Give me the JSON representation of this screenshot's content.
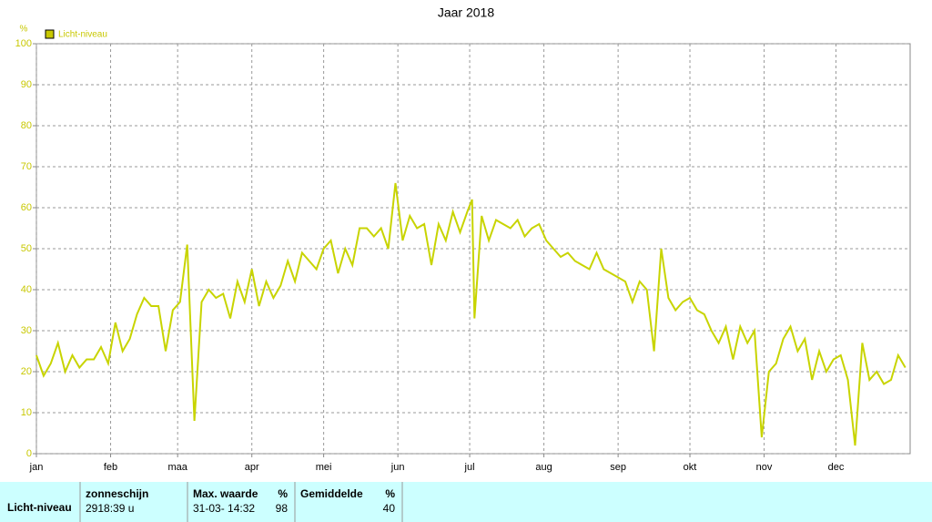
{
  "chart_data": {
    "type": "line",
    "title": "Jaar 2018",
    "y_unit": "%",
    "xlim": [
      0,
      365
    ],
    "xticks": [
      {
        "value": 0,
        "label": "jan"
      },
      {
        "value": 31,
        "label": "feb"
      },
      {
        "value": 59,
        "label": "maa"
      },
      {
        "value": 90,
        "label": "apr"
      },
      {
        "value": 120,
        "label": "mei"
      },
      {
        "value": 151,
        "label": "jun"
      },
      {
        "value": 181,
        "label": "jul"
      },
      {
        "value": 212,
        "label": "aug"
      },
      {
        "value": 243,
        "label": "sep"
      },
      {
        "value": 273,
        "label": "okt"
      },
      {
        "value": 304,
        "label": "nov"
      },
      {
        "value": 334,
        "label": "dec"
      }
    ],
    "ylim": [
      0,
      100
    ],
    "yticks": [
      0,
      10,
      20,
      30,
      40,
      50,
      60,
      70,
      80,
      90,
      100
    ],
    "grid": true,
    "legend": "top-left",
    "x": [
      0,
      3,
      6,
      9,
      12,
      15,
      18,
      21,
      24,
      27,
      30,
      33,
      36,
      39,
      42,
      45,
      48,
      51,
      54,
      57,
      60,
      63,
      66,
      69,
      72,
      75,
      78,
      81,
      84,
      87,
      90,
      93,
      96,
      99,
      102,
      105,
      108,
      111,
      114,
      117,
      120,
      123,
      126,
      129,
      132,
      135,
      138,
      141,
      144,
      147,
      150,
      153,
      156,
      159,
      162,
      165,
      168,
      171,
      174,
      177,
      180,
      182,
      183,
      186,
      189,
      192,
      195,
      198,
      201,
      204,
      207,
      210,
      213,
      216,
      219,
      222,
      225,
      228,
      231,
      234,
      237,
      240,
      243,
      246,
      249,
      252,
      255,
      258,
      261,
      264,
      267,
      270,
      273,
      276,
      279,
      282,
      285,
      288,
      291,
      294,
      297,
      300,
      303,
      306,
      309,
      312,
      315,
      318,
      321,
      324,
      327,
      330,
      333,
      336,
      339,
      342,
      345,
      348,
      351,
      354,
      357,
      360,
      363
    ],
    "series": [
      {
        "name": "Licht-niveau",
        "color": "#c8d400",
        "values": [
          24,
          19,
          22,
          27,
          20,
          24,
          21,
          23,
          23,
          26,
          22,
          32,
          25,
          28,
          34,
          38,
          36,
          36,
          25,
          35,
          37,
          51,
          8,
          37,
          40,
          38,
          39,
          33,
          42,
          37,
          45,
          36,
          42,
          38,
          41,
          47,
          42,
          49,
          47,
          45,
          50,
          52,
          44,
          50,
          46,
          55,
          55,
          53,
          55,
          50,
          66,
          52,
          58,
          55,
          56,
          46,
          56,
          52,
          59,
          54,
          59,
          62,
          33,
          58,
          52,
          57,
          56,
          55,
          57,
          53,
          55,
          56,
          52,
          50,
          48,
          49,
          47,
          46,
          45,
          49,
          45,
          44,
          43,
          42,
          37,
          42,
          40,
          25,
          50,
          38,
          35,
          37,
          38,
          35,
          34,
          30,
          27,
          31,
          23,
          31,
          27,
          30,
          4,
          20,
          22,
          28,
          31,
          25,
          28,
          18,
          25,
          20,
          23,
          24,
          18,
          2,
          27,
          18,
          20,
          17,
          18,
          24,
          21
        ]
      }
    ]
  },
  "table": {
    "row_label": "Licht-niveau",
    "col1_head": "zonneschijn",
    "col1_value": "2918:39 u",
    "col2_head": "Max. waarde",
    "col2_unit": "%",
    "col2_date": "31-03- 14:32",
    "col2_value": "98",
    "col3_head": "Gemiddelde",
    "col3_unit": "%",
    "col3_value": "40"
  }
}
